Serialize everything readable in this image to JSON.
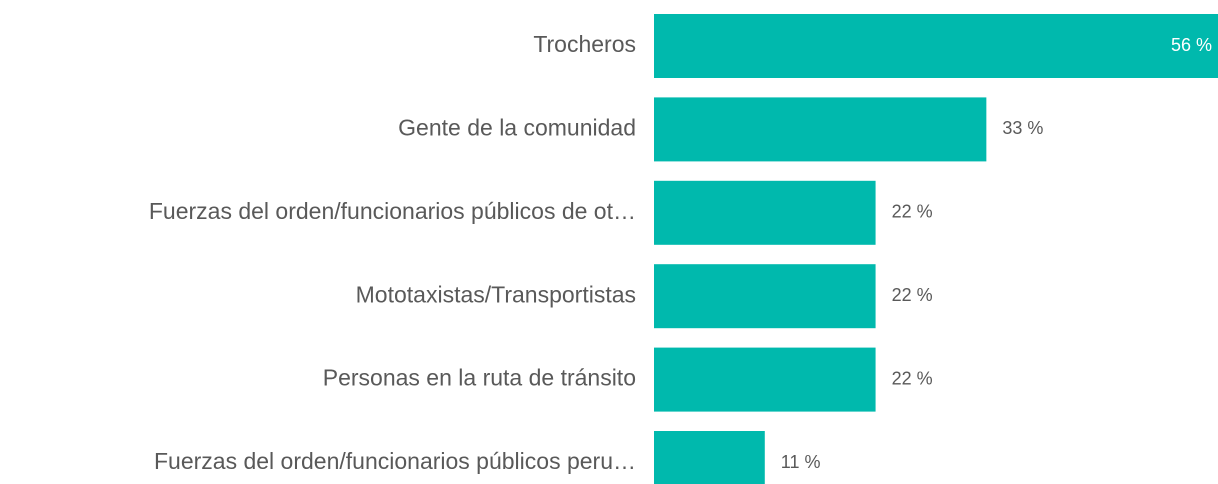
{
  "chart_data": {
    "type": "bar",
    "orientation": "horizontal",
    "categories": [
      "Trocheros",
      "Gente de la comunidad",
      "Fuerzas del orden/funcionarios públicos de ot…",
      "Mototaxistas/Transportistas",
      "Personas en la ruta de tránsito",
      "Fuerzas del orden/funcionarios públicos peru…"
    ],
    "values": [
      56,
      33,
      22,
      22,
      22,
      11
    ],
    "value_labels": [
      "56 %",
      "33 %",
      "22 %",
      "22 %",
      "22 %",
      "11 %"
    ],
    "color": "#00b9ad"
  }
}
